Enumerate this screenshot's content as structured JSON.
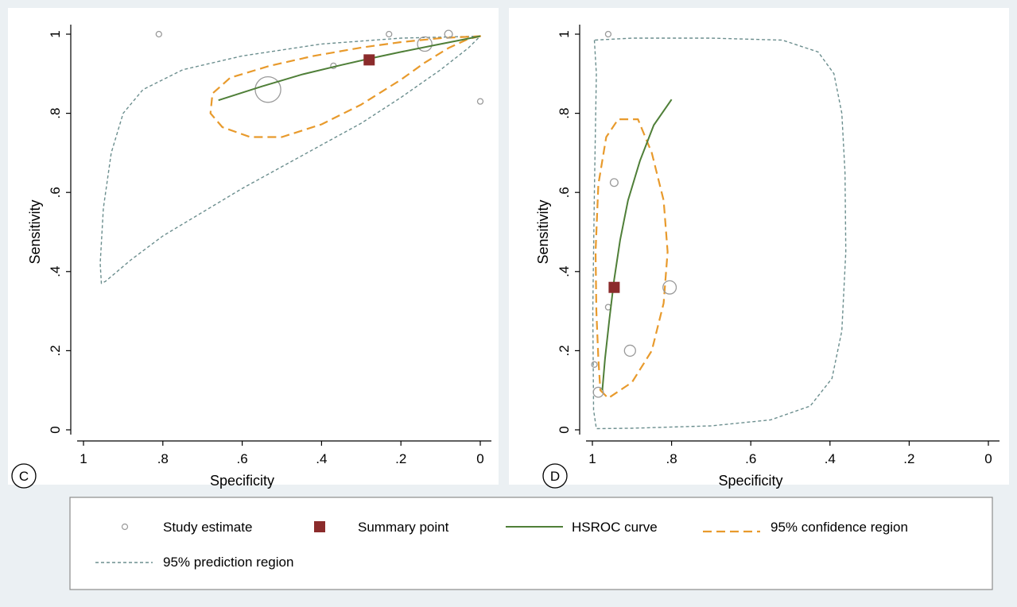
{
  "colors": {
    "background": "#ebf0f3",
    "panel": "#ffffff",
    "axis": "#000000",
    "study": "#9a9a9a",
    "summary": "#8b2b2b",
    "hsroc": "#4f7f38",
    "confidence": "#e89a2c",
    "prediction": "#6b8e8e"
  },
  "legend": {
    "items": [
      {
        "key": "study",
        "label": "Study estimate",
        "symbol": "circle"
      },
      {
        "key": "summary",
        "label": "Summary point",
        "symbol": "square"
      },
      {
        "key": "hsroc",
        "label": "HSROC curve",
        "symbol": "solid-line"
      },
      {
        "key": "confidence",
        "label": "95% confidence  region",
        "symbol": "long-dash-line"
      },
      {
        "key": "prediction",
        "label": "95% prediction  region",
        "symbol": "short-dash-line"
      }
    ]
  },
  "chart_data": [
    {
      "type": "scatter",
      "panel_label": "C",
      "xlabel": "Specificity",
      "ylabel": "Sensitivity",
      "xlim": [
        1,
        0
      ],
      "ylim": [
        0,
        1
      ],
      "x_reversed": true,
      "xticks": [
        1,
        0.8,
        0.6,
        0.4,
        0.2,
        0
      ],
      "xtick_labels": [
        "1",
        ".8",
        ".6",
        ".4",
        ".2",
        "0"
      ],
      "yticks": [
        0,
        0.2,
        0.4,
        0.6,
        0.8,
        1
      ],
      "ytick_labels": [
        "0",
        ".2",
        ".4",
        ".6",
        ".8",
        "1"
      ],
      "grid": false,
      "studies": [
        {
          "x": 0.81,
          "y": 1.0,
          "size": 0.05
        },
        {
          "x": 0.23,
          "y": 1.0,
          "size": 0.05
        },
        {
          "x": 0.08,
          "y": 1.0,
          "size": 0.07
        },
        {
          "x": 0.14,
          "y": 0.975,
          "size": 0.13
        },
        {
          "x": 0.37,
          "y": 0.92,
          "size": 0.05
        },
        {
          "x": 0.535,
          "y": 0.86,
          "size": 0.23
        },
        {
          "x": 0.0,
          "y": 0.83,
          "size": 0.03
        }
      ],
      "summary_point": {
        "x": 0.28,
        "y": 0.935
      },
      "hsroc_curve": [
        [
          0.66,
          0.833
        ],
        [
          0.55,
          0.868
        ],
        [
          0.45,
          0.898
        ],
        [
          0.35,
          0.922
        ],
        [
          0.28,
          0.938
        ],
        [
          0.2,
          0.955
        ],
        [
          0.12,
          0.971
        ],
        [
          0.05,
          0.985
        ],
        [
          0.0,
          0.995
        ]
      ],
      "confidence_region": [
        [
          0.0,
          0.995
        ],
        [
          0.03,
          0.988
        ],
        [
          0.08,
          0.965
        ],
        [
          0.14,
          0.928
        ],
        [
          0.2,
          0.885
        ],
        [
          0.3,
          0.822
        ],
        [
          0.4,
          0.772
        ],
        [
          0.5,
          0.74
        ],
        [
          0.58,
          0.74
        ],
        [
          0.65,
          0.765
        ],
        [
          0.68,
          0.8
        ],
        [
          0.675,
          0.85
        ],
        [
          0.63,
          0.89
        ],
        [
          0.53,
          0.92
        ],
        [
          0.42,
          0.945
        ],
        [
          0.3,
          0.966
        ],
        [
          0.2,
          0.98
        ],
        [
          0.1,
          0.99
        ],
        [
          0.0,
          0.995
        ]
      ],
      "prediction_region": [
        [
          0.0,
          0.995
        ],
        [
          0.2,
          0.99
        ],
        [
          0.4,
          0.975
        ],
        [
          0.6,
          0.945
        ],
        [
          0.75,
          0.91
        ],
        [
          0.85,
          0.86
        ],
        [
          0.9,
          0.8
        ],
        [
          0.93,
          0.7
        ],
        [
          0.95,
          0.56
        ],
        [
          0.958,
          0.42
        ],
        [
          0.955,
          0.37
        ],
        [
          0.945,
          0.375
        ],
        [
          0.88,
          0.43
        ],
        [
          0.8,
          0.49
        ],
        [
          0.7,
          0.55
        ],
        [
          0.6,
          0.61
        ],
        [
          0.5,
          0.665
        ],
        [
          0.4,
          0.72
        ],
        [
          0.3,
          0.775
        ],
        [
          0.2,
          0.84
        ],
        [
          0.1,
          0.91
        ],
        [
          0.03,
          0.965
        ],
        [
          0.0,
          0.995
        ]
      ]
    },
    {
      "type": "scatter",
      "panel_label": "D",
      "xlabel": "Specificity",
      "ylabel": "Sensitivity",
      "xlim": [
        1,
        0
      ],
      "ylim": [
        0,
        1
      ],
      "x_reversed": true,
      "xticks": [
        1,
        0.8,
        0.6,
        0.4,
        0.2,
        0
      ],
      "xtick_labels": [
        "1",
        ".8",
        ".6",
        ".4",
        ".2",
        "0"
      ],
      "yticks": [
        0,
        0.2,
        0.4,
        0.6,
        0.8,
        1
      ],
      "ytick_labels": [
        "0",
        ".2",
        ".4",
        ".6",
        ".8",
        "1"
      ],
      "grid": false,
      "studies": [
        {
          "x": 0.96,
          "y": 1.0,
          "size": 0.035
        },
        {
          "x": 0.945,
          "y": 0.625,
          "size": 0.07
        },
        {
          "x": 0.96,
          "y": 0.31,
          "size": 0.035
        },
        {
          "x": 0.805,
          "y": 0.36,
          "size": 0.12
        },
        {
          "x": 0.905,
          "y": 0.2,
          "size": 0.1
        },
        {
          "x": 0.995,
          "y": 0.165,
          "size": 0.02
        },
        {
          "x": 0.985,
          "y": 0.095,
          "size": 0.09
        }
      ],
      "summary_point": {
        "x": 0.945,
        "y": 0.36
      },
      "hsroc_curve": [
        [
          0.975,
          0.1
        ],
        [
          0.968,
          0.18
        ],
        [
          0.957,
          0.28
        ],
        [
          0.945,
          0.38
        ],
        [
          0.93,
          0.48
        ],
        [
          0.91,
          0.58
        ],
        [
          0.88,
          0.68
        ],
        [
          0.845,
          0.77
        ],
        [
          0.8,
          0.835
        ]
      ],
      "confidence_region": [
        [
          0.98,
          0.1
        ],
        [
          0.96,
          0.08
        ],
        [
          0.9,
          0.12
        ],
        [
          0.85,
          0.2
        ],
        [
          0.82,
          0.32
        ],
        [
          0.81,
          0.45
        ],
        [
          0.82,
          0.58
        ],
        [
          0.85,
          0.7
        ],
        [
          0.885,
          0.785
        ],
        [
          0.935,
          0.785
        ],
        [
          0.965,
          0.74
        ],
        [
          0.985,
          0.62
        ],
        [
          0.992,
          0.45
        ],
        [
          0.99,
          0.3
        ],
        [
          0.985,
          0.18
        ],
        [
          0.98,
          0.1
        ]
      ],
      "prediction_region": [
        [
          0.995,
          0.985
        ],
        [
          0.99,
          0.9
        ],
        [
          0.995,
          0.6
        ],
        [
          0.999,
          0.3
        ],
        [
          0.997,
          0.05
        ],
        [
          0.99,
          0.003
        ],
        [
          0.9,
          0.004
        ],
        [
          0.7,
          0.01
        ],
        [
          0.55,
          0.025
        ],
        [
          0.45,
          0.06
        ],
        [
          0.395,
          0.13
        ],
        [
          0.37,
          0.25
        ],
        [
          0.36,
          0.45
        ],
        [
          0.362,
          0.65
        ],
        [
          0.37,
          0.8
        ],
        [
          0.39,
          0.9
        ],
        [
          0.43,
          0.955
        ],
        [
          0.52,
          0.985
        ],
        [
          0.7,
          0.99
        ],
        [
          0.9,
          0.99
        ],
        [
          0.995,
          0.985
        ]
      ]
    }
  ]
}
